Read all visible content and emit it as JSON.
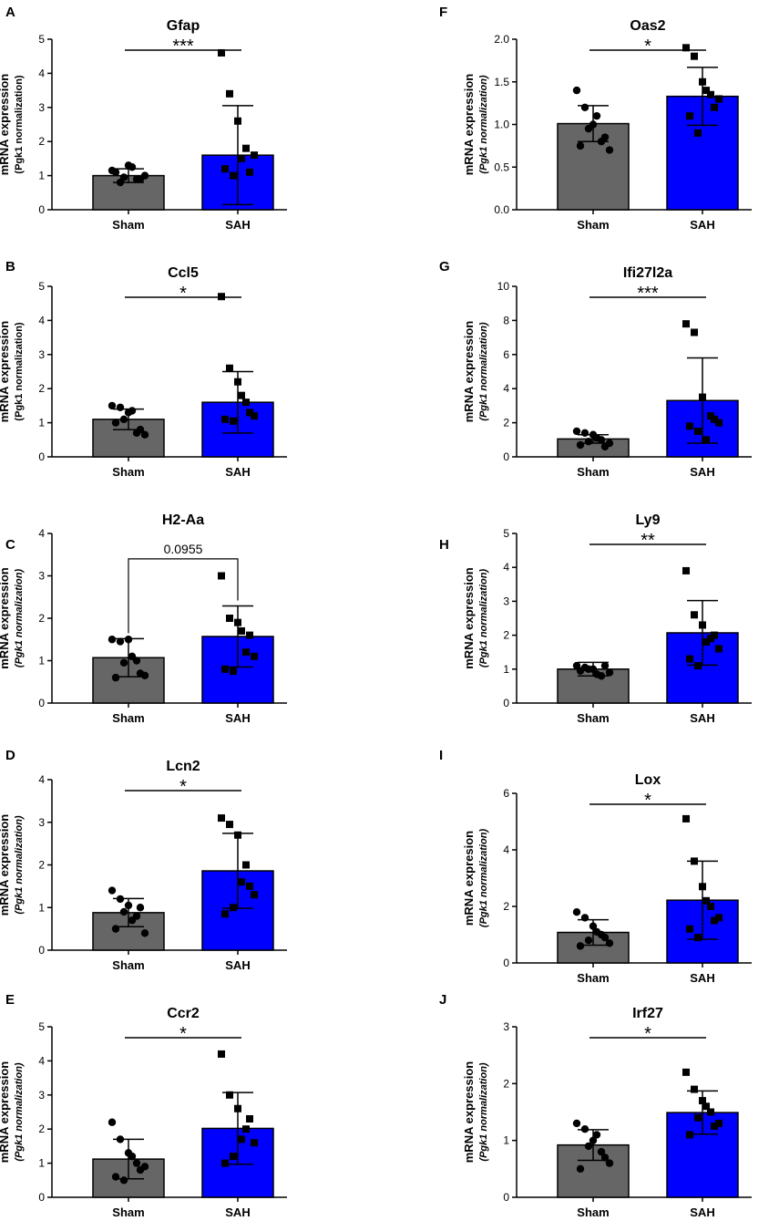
{
  "chart_data": [
    {
      "panel": "A",
      "type": "bar",
      "title": "Gfap",
      "ylabel": "mRNA expression",
      "ylabel2": "(Pgk1 normalization)",
      "ylabel2_italic": false,
      "ylim": [
        0,
        5
      ],
      "yticks": [
        "0",
        "1",
        "2",
        "3",
        "4",
        "5"
      ],
      "categories": [
        "Sham",
        "SAH"
      ],
      "means": [
        1.0,
        1.6
      ],
      "sd": [
        0.2,
        1.45
      ],
      "colors": [
        "#666666",
        "#0000ff"
      ],
      "points": [
        [
          1.15,
          0.8,
          1.3,
          0.9,
          1.0,
          1.1,
          0.95,
          1.25,
          0.9
        ],
        [
          4.6,
          3.4,
          2.6,
          1.8,
          1.6,
          1.2,
          1.0,
          1.5,
          1.1
        ]
      ],
      "significance": "***",
      "bracket": "line"
    },
    {
      "panel": "B",
      "type": "bar",
      "title": "Ccl5",
      "ylabel": "mRNA expression",
      "ylabel2": "(Pgk1 normalization)",
      "ylabel2_italic": false,
      "ylim": [
        0,
        5
      ],
      "yticks": [
        "0",
        "1",
        "2",
        "3",
        "4",
        "5"
      ],
      "categories": [
        "Sham",
        "SAH"
      ],
      "means": [
        1.1,
        1.6
      ],
      "sd": [
        0.3,
        0.9
      ],
      "colors": [
        "#666666",
        "#0000ff"
      ],
      "points": [
        [
          1.5,
          1.45,
          1.3,
          0.7,
          0.65,
          1.0,
          1.1,
          1.35,
          0.8
        ],
        [
          4.7,
          2.6,
          2.2,
          1.6,
          1.2,
          1.1,
          1.05,
          1.8,
          1.3
        ]
      ],
      "significance": "*",
      "bracket": "line"
    },
    {
      "panel": "C",
      "type": "bar",
      "title": "H2-Aa",
      "ylabel": "mRNA expression",
      "ylabel2": "(Pgk1 normalization)",
      "ylabel2_italic": true,
      "ylim": [
        0,
        4
      ],
      "yticks": [
        "0",
        "1",
        "2",
        "3",
        "4"
      ],
      "categories": [
        "Sham",
        "SAH"
      ],
      "means": [
        1.07,
        1.57
      ],
      "sd": [
        0.45,
        0.72
      ],
      "colors": [
        "#666666",
        "#0000ff"
      ],
      "points": [
        [
          1.5,
          1.45,
          1.5,
          1.0,
          0.65,
          0.6,
          0.95,
          1.1,
          0.7
        ],
        [
          3.0,
          2.0,
          1.9,
          1.2,
          1.1,
          0.8,
          0.75,
          1.7,
          1.6
        ]
      ],
      "significance": "0.0955",
      "bracket": "bracket"
    },
    {
      "panel": "D",
      "type": "bar",
      "title": "Lcn2",
      "ylabel": "mRNA expression",
      "ylabel2": "(Pgk1 normalization)",
      "ylabel2_italic": true,
      "ylim": [
        0,
        4
      ],
      "yticks": [
        "0",
        "1",
        "2",
        "3",
        "4"
      ],
      "categories": [
        "Sham",
        "SAH"
      ],
      "means": [
        0.88,
        1.86
      ],
      "sd": [
        0.33,
        0.88
      ],
      "colors": [
        "#666666",
        "#0000ff"
      ],
      "points": [
        [
          1.4,
          1.2,
          1.05,
          0.8,
          0.4,
          0.5,
          0.9,
          0.7,
          1.0
        ],
        [
          3.1,
          2.95,
          2.7,
          2.0,
          1.3,
          0.85,
          1.0,
          1.6,
          1.5
        ]
      ],
      "significance": "*",
      "bracket": "line"
    },
    {
      "panel": "E",
      "type": "bar",
      "title": "Ccr2",
      "ylabel": "mRNA expression",
      "ylabel2": "(Pgk1 normalization)",
      "ylabel2_italic": true,
      "ylim": [
        0,
        5
      ],
      "yticks": [
        "0",
        "1",
        "2",
        "3",
        "4",
        "5"
      ],
      "categories": [
        "Sham",
        "SAH"
      ],
      "means": [
        1.12,
        2.02
      ],
      "sd": [
        0.58,
        1.05
      ],
      "colors": [
        "#666666",
        "#0000ff"
      ],
      "points": [
        [
          2.2,
          1.7,
          1.3,
          1.0,
          0.9,
          0.6,
          0.5,
          1.2,
          0.8
        ],
        [
          4.2,
          3.0,
          2.6,
          2.0,
          1.6,
          1.0,
          1.2,
          1.7,
          2.3
        ]
      ],
      "significance": "*",
      "bracket": "line"
    },
    {
      "panel": "F",
      "type": "bar",
      "title": "Oas2",
      "ylabel": "mRNA expression",
      "ylabel2": "(Pgk1 normalization)",
      "ylabel2_italic": true,
      "ylim": [
        0,
        2.0
      ],
      "yticks": [
        "0.0",
        "0.5",
        "1.0",
        "1.5",
        "2.0"
      ],
      "categories": [
        "Sham",
        "SAH"
      ],
      "means": [
        1.01,
        1.33
      ],
      "sd": [
        0.21,
        0.34
      ],
      "colors": [
        "#666666",
        "#0000ff"
      ],
      "points": [
        [
          1.4,
          1.2,
          1.0,
          0.8,
          0.7,
          0.75,
          0.95,
          1.1,
          0.85
        ],
        [
          1.9,
          1.8,
          1.5,
          1.35,
          1.3,
          1.1,
          0.9,
          1.4,
          1.2
        ]
      ],
      "significance": "*",
      "bracket": "line"
    },
    {
      "panel": "G",
      "type": "bar",
      "title": "Ifi27l2a",
      "ylabel": "mRNA expression",
      "ylabel2": "(Pgk1 normalization)",
      "ylabel2_italic": true,
      "ylim": [
        0,
        10
      ],
      "yticks": [
        "0",
        "2",
        "4",
        "6",
        "8",
        "10"
      ],
      "categories": [
        "Sham",
        "SAH"
      ],
      "means": [
        1.05,
        3.3
      ],
      "sd": [
        0.25,
        2.5
      ],
      "colors": [
        "#666666",
        "#0000ff"
      ],
      "points": [
        [
          1.5,
          1.4,
          1.3,
          1.0,
          0.8,
          0.7,
          0.9,
          1.1,
          0.6
        ],
        [
          7.8,
          7.3,
          3.5,
          2.4,
          2.0,
          1.8,
          1.5,
          1.0,
          2.2
        ]
      ],
      "significance": "***",
      "bracket": "line"
    },
    {
      "panel": "H",
      "type": "bar",
      "title": "Ly9",
      "ylabel": "mRNA expression",
      "ylabel2": "(Pgk1 normalization)",
      "ylabel2_italic": true,
      "ylim": [
        0,
        5
      ],
      "yticks": [
        "0",
        "1",
        "2",
        "3",
        "4",
        "5"
      ],
      "categories": [
        "Sham",
        "SAH"
      ],
      "means": [
        1.0,
        2.07
      ],
      "sd": [
        0.2,
        0.95
      ],
      "colors": [
        "#666666",
        "#0000ff"
      ],
      "points": [
        [
          1.1,
          1.05,
          1.0,
          0.8,
          0.9,
          0.95,
          1.0,
          0.85,
          1.1
        ],
        [
          3.9,
          2.6,
          2.3,
          1.9,
          1.6,
          1.3,
          1.1,
          1.8,
          2.0
        ]
      ],
      "significance": "**",
      "bracket": "line"
    },
    {
      "panel": "I",
      "type": "bar",
      "title": "Lox",
      "ylabel": "mRNA expresion",
      "ylabel2": "(Pgk1 normalization)",
      "ylabel2_italic": true,
      "ylim": [
        0,
        6
      ],
      "yticks": [
        "0",
        "2",
        "4",
        "6"
      ],
      "categories": [
        "Sham",
        "SAH"
      ],
      "means": [
        1.08,
        2.22
      ],
      "sd": [
        0.45,
        1.38
      ],
      "colors": [
        "#666666",
        "#0000ff"
      ],
      "points": [
        [
          1.8,
          1.6,
          1.3,
          1.0,
          0.7,
          0.6,
          0.8,
          1.1,
          0.9
        ],
        [
          5.1,
          3.6,
          2.7,
          2.0,
          1.6,
          1.2,
          0.9,
          2.2,
          1.5
        ]
      ],
      "significance": "*",
      "bracket": "line"
    },
    {
      "panel": "J",
      "type": "bar",
      "title": "Irf27",
      "ylabel": "mRNA expression",
      "ylabel2": "(Pgk1 normalization)",
      "ylabel2_italic": true,
      "ylim": [
        0,
        3
      ],
      "yticks": [
        "0",
        "1",
        "2",
        "3"
      ],
      "categories": [
        "Sham",
        "SAH"
      ],
      "means": [
        0.92,
        1.49
      ],
      "sd": [
        0.27,
        0.38
      ],
      "colors": [
        "#666666",
        "#0000ff"
      ],
      "points": [
        [
          1.3,
          1.2,
          1.0,
          0.8,
          0.6,
          0.5,
          0.9,
          1.1,
          0.7
        ],
        [
          2.2,
          1.9,
          1.7,
          1.5,
          1.3,
          1.1,
          1.4,
          1.6,
          1.25
        ]
      ],
      "significance": "*",
      "bracket": "line"
    }
  ]
}
